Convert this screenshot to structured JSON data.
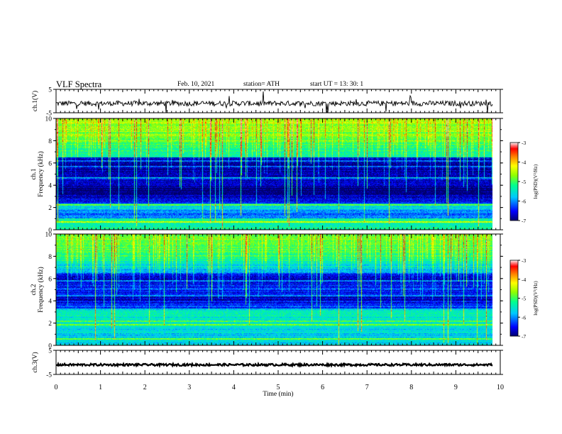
{
  "header": {
    "title": "VLF Spectra",
    "date": "Feb. 10, 2021",
    "station": "station= ATH",
    "start": "start  UT  =   13: 30: 1"
  },
  "chart_data": [
    {
      "type": "line",
      "name": "waveform-ch1",
      "ylabel": "ch.1(V)",
      "ylim": [
        -5,
        5
      ],
      "yticks": [
        "5",
        "-5"
      ],
      "xlim": [
        0,
        10
      ],
      "x_end": 9.82,
      "baseline": -1
    },
    {
      "type": "heatmap",
      "name": "spectrogram-ch1",
      "ylabel_line1": "ch.1",
      "ylabel_line2": "Frequency  (kHz)",
      "ylim": [
        0,
        10
      ],
      "yticks": [
        "0",
        "2",
        "4",
        "6",
        "8",
        "10"
      ],
      "xlim": [
        0,
        10
      ],
      "colorbar": {
        "label": "log(PSD)(V²/Hz)",
        "range": [
          -7,
          -3
        ],
        "ticks": [
          "-3",
          "-4",
          "-5",
          "-6",
          "-7"
        ]
      }
    },
    {
      "type": "heatmap",
      "name": "spectrogram-ch2",
      "ylabel_line1": "ch.2",
      "ylabel_line2": "Frequency  (kHz)",
      "ylim": [
        0,
        10
      ],
      "yticks": [
        "0",
        "2",
        "4",
        "6",
        "8",
        "10"
      ],
      "xlim": [
        0,
        10
      ],
      "colorbar": {
        "label": "log(PSD)(V²/Hz)",
        "range": [
          -7,
          -3
        ],
        "ticks": [
          "-3",
          "-4",
          "-5",
          "-6",
          "-7"
        ]
      }
    },
    {
      "type": "line",
      "name": "waveform-ch3",
      "ylabel": "ch.3(V)",
      "ylim": [
        -5,
        5
      ],
      "yticks": [
        "5",
        "-5"
      ],
      "xlim": [
        0,
        10
      ],
      "x_end": 9.82,
      "baseline": -1
    }
  ],
  "xaxis": {
    "label": "Time  (min)",
    "ticks": [
      "0",
      "1",
      "2",
      "3",
      "4",
      "5",
      "6",
      "7",
      "8",
      "9",
      "10"
    ],
    "range": [
      0,
      10
    ]
  }
}
